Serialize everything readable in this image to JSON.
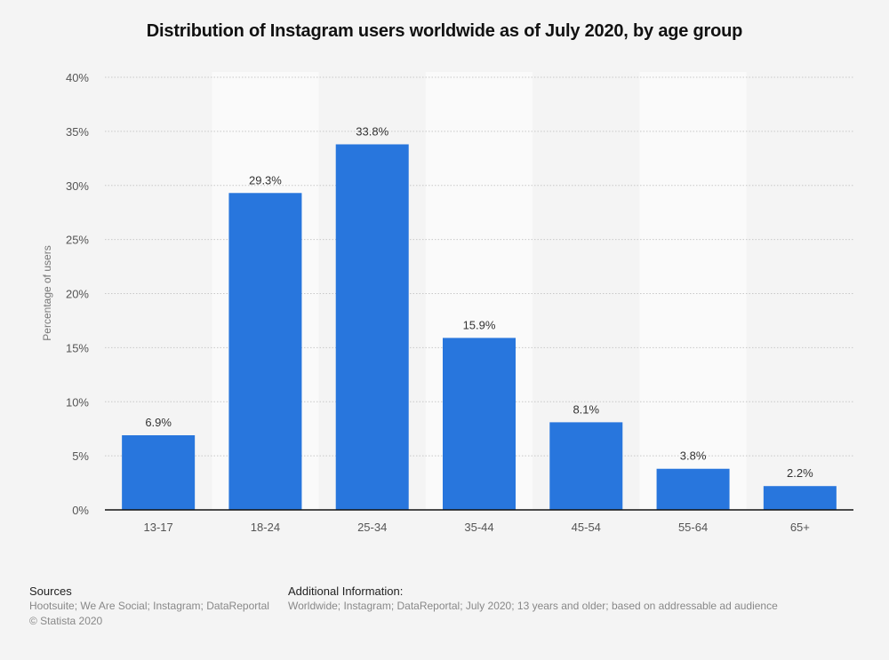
{
  "chart_data": {
    "type": "bar",
    "title": "Distribution of Instagram users worldwide as of July 2020, by age group",
    "xlabel": "",
    "ylabel": "Percentage of users",
    "categories": [
      "13-17",
      "18-24",
      "25-34",
      "35-44",
      "45-54",
      "55-64",
      "65+"
    ],
    "values": [
      6.9,
      29.3,
      33.8,
      15.9,
      8.1,
      3.8,
      2.2
    ],
    "data_labels": [
      "6.9%",
      "29.3%",
      "33.8%",
      "15.9%",
      "8.1%",
      "3.8%",
      "2.2%"
    ],
    "ylim": [
      0,
      40
    ],
    "yticks": [
      0,
      5,
      10,
      15,
      20,
      25,
      30,
      35,
      40
    ],
    "ytick_labels": [
      "0%",
      "5%",
      "10%",
      "15%",
      "20%",
      "25%",
      "30%",
      "35%",
      "40%"
    ],
    "grid": true,
    "bar_color": "#2876dd",
    "legend": "none"
  },
  "footer": {
    "sources_heading": "Sources",
    "sources_text": "Hootsuite; We Are Social; Instagram; DataReportal",
    "copyright": "© Statista 2020",
    "additional_heading": "Additional Information:",
    "additional_text": "Worldwide; Instagram; DataReportal; July 2020; 13 years and older; based on addressable ad audience"
  }
}
